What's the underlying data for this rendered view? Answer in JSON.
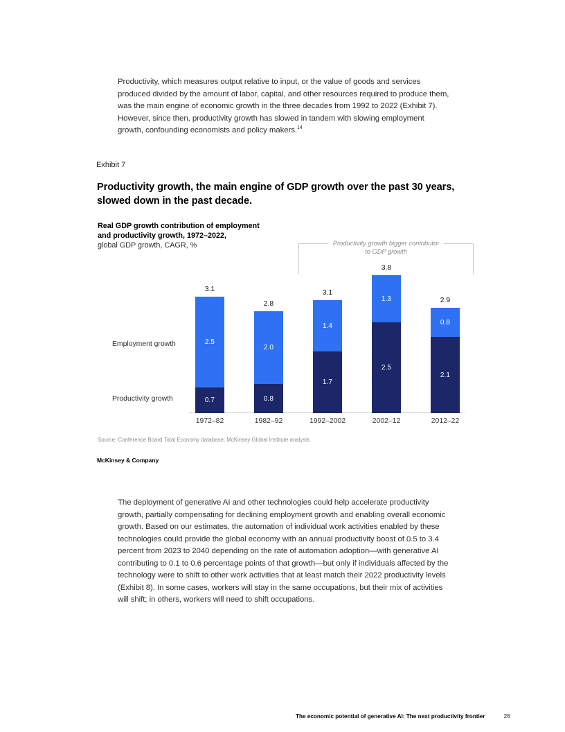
{
  "page": {
    "body_paragraph_1": "Productivity, which measures output relative to input, or the value of goods and services produced divided by the amount of labor, capital, and other resources required to produce them, was the main engine of economic growth in the three decades from 1992 to 2022 (Exhibit 7). However, since then, productivity growth has slowed in tandem with slowing employment growth, confounding economists and policy makers.",
    "footnote_marker": "14",
    "body_paragraph_2": "The deployment of generative AI and other technologies could help accelerate productivity growth, partially compensating for declining employment growth and enabling overall economic growth. Based on our estimates, the automation of individual work activities enabled by these technologies could provide the global economy with an annual productivity boost of 0.5 to 3.4 percent from 2023 to 2040 depending on the rate of automation adoption—with generative AI contributing to 0.1 to 0.6 percentage points of that growth—but only if individuals affected by the technology were to shift to other work activities that at least match their 2022 productivity levels (Exhibit 8). In some cases, workers will stay in the same occupations, but their mix of activities will shift; in others, workers will need to shift occupations."
  },
  "exhibit": {
    "label": "Exhibit 7",
    "title": "Productivity growth, the main engine of GDP growth over the past 30 years, slowed down in the past decade."
  },
  "chart_data": {
    "type": "bar",
    "stacked": true,
    "title": "Real GDP growth contribution of employment\nand productivity growth, 1972–2022,",
    "subtitle": "global GDP growth, CAGR, %",
    "categories": [
      "1972–82",
      "1982–92",
      "1992–2002",
      "2002–12",
      "2012–22"
    ],
    "series": [
      {
        "name": "Productivity growth",
        "values": [
          0.7,
          0.8,
          1.7,
          2.5,
          2.1
        ],
        "color": "#1B2769"
      },
      {
        "name": "Employment growth",
        "values": [
          2.5,
          2.0,
          1.4,
          1.3,
          0.8
        ],
        "color": "#2E71F2"
      }
    ],
    "totals": [
      3.1,
      2.8,
      3.1,
      3.8,
      2.9
    ],
    "ylim": [
      0,
      4
    ],
    "grid": false,
    "legend_position": "left-of-bars",
    "annotation": "Productivity growth bigger contributor\nto GDP growth",
    "annotation_span_categories": [
      "1992–2002",
      "2002–12",
      "2012–22"
    ],
    "source": "Source: Conference Board Total Economy database; McKinsey Global Institute analysis"
  },
  "footer": {
    "brand": "McKinsey & Company",
    "report_title": "The economic potential of generative AI: The next productivity frontier",
    "page_number": "26"
  }
}
